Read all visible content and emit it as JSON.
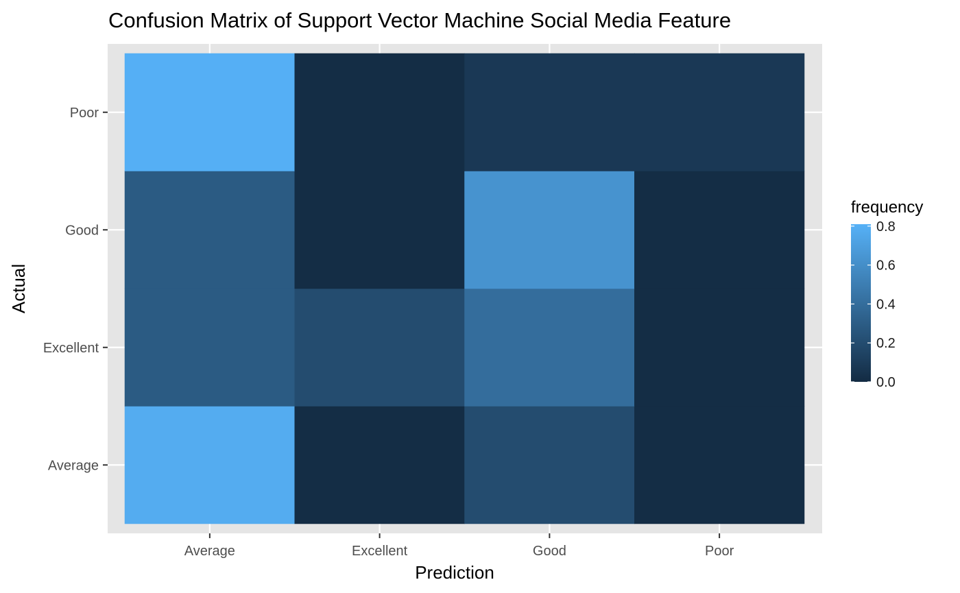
{
  "chart_data": {
    "type": "heatmap",
    "title": "Confusion Matrix of Support Vector Machine Social Media Feature",
    "xlabel": "Prediction",
    "ylabel": "Actual",
    "x_categories": [
      "Average",
      "Excellent",
      "Good",
      "Poor"
    ],
    "y_categories": [
      "Average",
      "Excellent",
      "Good",
      "Poor"
    ],
    "cells": [
      {
        "actual": "Average",
        "prediction": "Average",
        "value": 0.78
      },
      {
        "actual": "Average",
        "prediction": "Excellent",
        "value": 0.01
      },
      {
        "actual": "Average",
        "prediction": "Good",
        "value": 0.2
      },
      {
        "actual": "Average",
        "prediction": "Poor",
        "value": 0.01
      },
      {
        "actual": "Excellent",
        "prediction": "Average",
        "value": 0.29
      },
      {
        "actual": "Excellent",
        "prediction": "Excellent",
        "value": 0.2
      },
      {
        "actual": "Excellent",
        "prediction": "Good",
        "value": 0.4
      },
      {
        "actual": "Excellent",
        "prediction": "Poor",
        "value": 0.01
      },
      {
        "actual": "Good",
        "prediction": "Average",
        "value": 0.29
      },
      {
        "actual": "Good",
        "prediction": "Excellent",
        "value": 0.01
      },
      {
        "actual": "Good",
        "prediction": "Good",
        "value": 0.63
      },
      {
        "actual": "Good",
        "prediction": "Poor",
        "value": 0.01
      },
      {
        "actual": "Poor",
        "prediction": "Average",
        "value": 0.8
      },
      {
        "actual": "Poor",
        "prediction": "Excellent",
        "value": 0.01
      },
      {
        "actual": "Poor",
        "prediction": "Good",
        "value": 0.08
      },
      {
        "actual": "Poor",
        "prediction": "Poor",
        "value": 0.08
      }
    ],
    "legend": {
      "title": "frequency",
      "ticks": [
        "0.0",
        "0.2",
        "0.4",
        "0.6",
        "0.8"
      ],
      "tick_values": [
        0.0,
        0.2,
        0.4,
        0.6,
        0.8
      ],
      "range": [
        0.0,
        0.81
      ],
      "position": "right"
    },
    "colors": {
      "low": "#132b43",
      "high": "#56b1f7",
      "panel_background": "#e5e5e5",
      "grid": "#ffffff"
    },
    "grid": true
  }
}
